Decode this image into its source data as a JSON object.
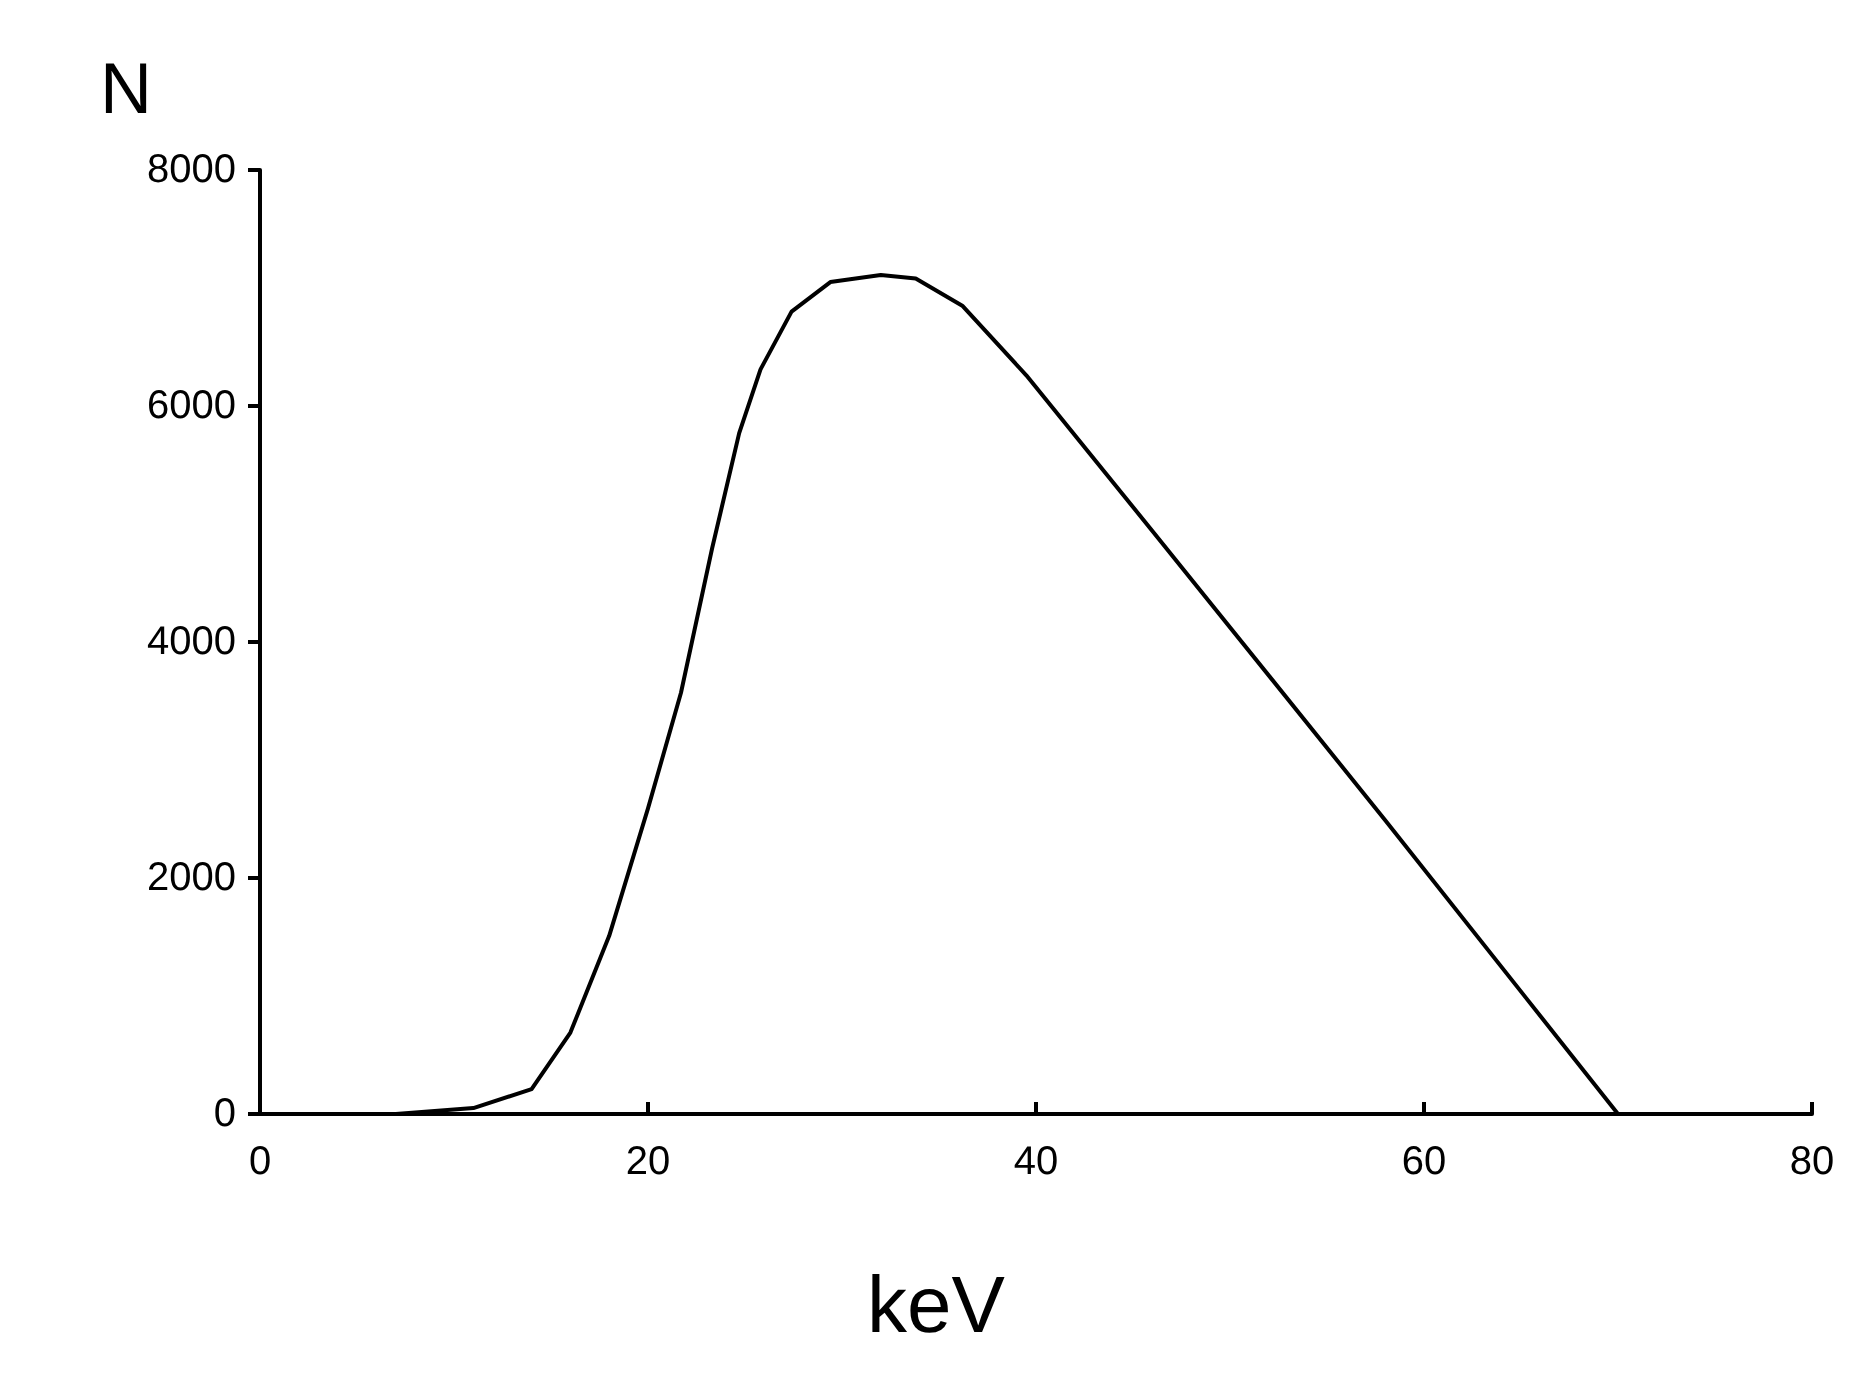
{
  "chart_data": {
    "type": "line",
    "xlabel": "keV",
    "ylabel": "N",
    "x": [
      7,
      11,
      14,
      16,
      18,
      20,
      21.7,
      23.3,
      24.7,
      25.8,
      27.4,
      29.4,
      32,
      33.8,
      36.2,
      39.5,
      46.3,
      58,
      70
    ],
    "series": [
      {
        "color": "#000000",
        "values": [
          0,
          50,
          210,
          690,
          1510,
          2590,
          3570,
          4790,
          5770,
          6310,
          6800,
          7050,
          7110,
          7080,
          6850,
          6260,
          4880,
          2490,
          0
        ]
      }
    ],
    "xlim": [
      0,
      80
    ],
    "xticks": [
      0,
      20,
      40,
      60,
      80
    ],
    "ylim": [
      0,
      8000
    ],
    "yticks": [
      0,
      2000,
      4000,
      6000,
      8000
    ],
    "grid": false,
    "marker": "none",
    "line_style": "solid"
  }
}
